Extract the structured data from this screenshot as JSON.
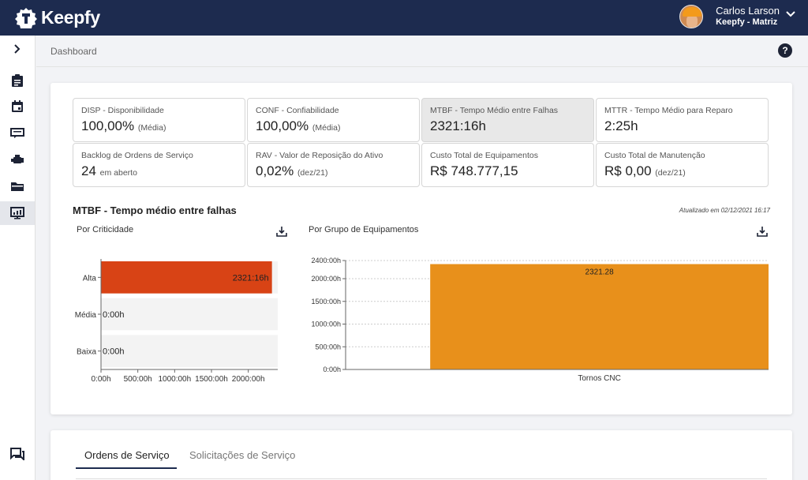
{
  "app": {
    "name": "Keepfy"
  },
  "user": {
    "name": "Carlos Larson",
    "org": "Keepfy - Matriz"
  },
  "breadcrumb": "Dashboard",
  "help_label": "?",
  "kpis": [
    {
      "label": "DISP - Disponibilidade",
      "value": "100,00%",
      "note": "(Média)"
    },
    {
      "label": "CONF - Confiabilidade",
      "value": "100,00%",
      "note": "(Média)"
    },
    {
      "label": "MTBF - Tempo Médio entre Falhas",
      "value": "2321:16h",
      "note": ""
    },
    {
      "label": "MTTR - Tempo Médio para Reparo",
      "value": "2:25h",
      "note": ""
    },
    {
      "label": "Backlog de Ordens de Serviço",
      "value": "24",
      "note": "em aberto"
    },
    {
      "label": "RAV - Valor de Reposição do Ativo",
      "value": "0,02%",
      "note": "(dez/21)"
    },
    {
      "label": "Custo Total de Equipamentos",
      "value": "R$ 748.777,15",
      "note": ""
    },
    {
      "label": "Custo Total de Manutenção",
      "value": "R$ 0,00",
      "note": "(dez/21)"
    }
  ],
  "section": {
    "title": "MTBF - Tempo médio entre falhas",
    "updated": "Atualizado em 02/12/2021 16:17"
  },
  "colors": {
    "criticality_bar": "#d84315",
    "group_bar": "#e8901b",
    "navy": "#1d2b4f"
  },
  "chart_data": [
    {
      "type": "bar",
      "orientation": "horizontal",
      "title": "Por Criticidade",
      "categories": [
        "Alta",
        "Média",
        "Baixa"
      ],
      "values": [
        2321.27,
        0,
        0
      ],
      "data_labels": [
        "2321:16h",
        "0:00h",
        "0:00h"
      ],
      "xlim": [
        0,
        2400
      ],
      "xticks": [
        0,
        500,
        1000,
        1500,
        2000
      ],
      "xtick_labels": [
        "0:00h",
        "500:00h",
        "1000:00h",
        "1500:00h",
        "2000:00h"
      ]
    },
    {
      "type": "bar",
      "title": "Por Grupo de Equipamentos",
      "categories": [
        "Tornos CNC"
      ],
      "values": [
        2321.28
      ],
      "data_labels": [
        "2321.28"
      ],
      "ylim": [
        0,
        2400
      ],
      "yticks": [
        0,
        500,
        1000,
        1500,
        2000,
        2400
      ],
      "ytick_labels": [
        "0:00h",
        "500:00h",
        "1000:00h",
        "1500:00h",
        "2000:00h",
        "2400:00h"
      ]
    }
  ],
  "tabs": [
    {
      "label": "Ordens de Serviço",
      "active": true
    },
    {
      "label": "Solicitações de Serviço",
      "active": false
    }
  ],
  "sidebar_icons": [
    "expand-chevron-icon",
    "clipboard-icon",
    "calendar-icon",
    "ticket-icon",
    "engine-icon",
    "folder-icon",
    "dashboard-icon",
    "chat-icon"
  ]
}
